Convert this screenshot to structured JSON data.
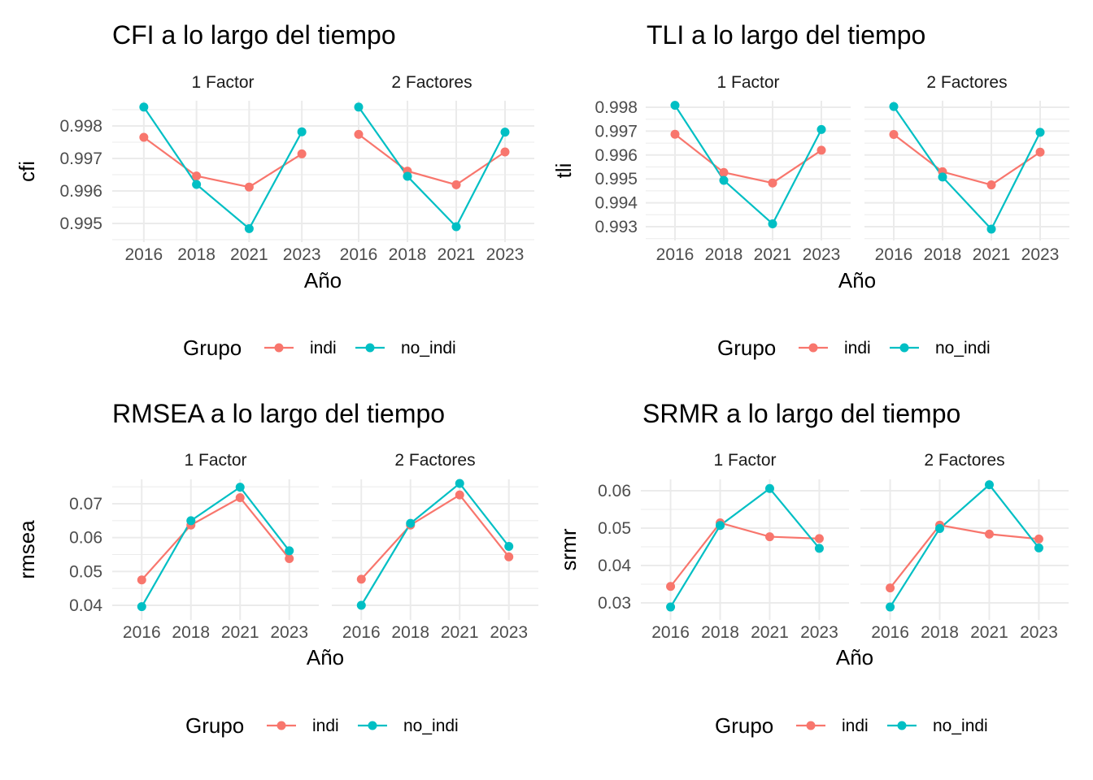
{
  "chart_data": [
    {
      "type": "line",
      "title": "CFI a lo largo del tiempo",
      "xlabel": "Año",
      "ylabel": "cfi",
      "categories": [
        "2016",
        "2018",
        "2021",
        "2023"
      ],
      "yticks": [
        "0.995",
        "0.996",
        "0.997",
        "0.998"
      ],
      "ylim": [
        0.99484,
        0.99858
      ],
      "facets": [
        {
          "label": "1 Factor",
          "series": [
            {
              "name": "indi",
              "values": [
                0.99765,
                0.99646,
                0.99612,
                0.99714
              ]
            },
            {
              "name": "no_indi",
              "values": [
                0.99858,
                0.9962,
                0.99484,
                0.99782
              ]
            }
          ]
        },
        {
          "label": "2 Factores",
          "series": [
            {
              "name": "indi",
              "values": [
                0.99774,
                0.99661,
                0.99619,
                0.9972
              ]
            },
            {
              "name": "no_indi",
              "values": [
                0.99858,
                0.99645,
                0.9949,
                0.99781
              ]
            }
          ]
        }
      ],
      "legend": {
        "title": "Grupo",
        "position": "bottom"
      }
    },
    {
      "type": "line",
      "title": "TLI a lo largo del tiempo",
      "xlabel": "Año",
      "ylabel": "tli",
      "categories": [
        "2016",
        "2018",
        "2021",
        "2023"
      ],
      "yticks": [
        "0.993",
        "0.994",
        "0.995",
        "0.996",
        "0.997",
        "0.998"
      ],
      "ylim": [
        0.9929,
        0.99808
      ],
      "facets": [
        {
          "label": "1 Factor",
          "series": [
            {
              "name": "indi",
              "values": [
                0.99687,
                0.99527,
                0.99483,
                0.9962
              ]
            },
            {
              "name": "no_indi",
              "values": [
                0.99808,
                0.99494,
                0.99312,
                0.99707
              ]
            }
          ]
        },
        {
          "label": "2 Factores",
          "series": [
            {
              "name": "indi",
              "values": [
                0.99686,
                0.9953,
                0.99475,
                0.99612
              ]
            },
            {
              "name": "no_indi",
              "values": [
                0.99803,
                0.99508,
                0.9929,
                0.99695
              ]
            }
          ]
        }
      ],
      "legend": {
        "title": "Grupo",
        "position": "bottom"
      }
    },
    {
      "type": "line",
      "title": "RMSEA a lo largo del tiempo",
      "xlabel": "Año",
      "ylabel": "rmsea",
      "categories": [
        "2016",
        "2018",
        "2021",
        "2023"
      ],
      "yticks": [
        "0.04",
        "0.05",
        "0.06",
        "0.07"
      ],
      "ylim": [
        0.0396,
        0.076
      ],
      "facets": [
        {
          "label": "1 Factor",
          "series": [
            {
              "name": "indi",
              "values": [
                0.0475,
                0.0637,
                0.0718,
                0.0538
              ]
            },
            {
              "name": "no_indi",
              "values": [
                0.0396,
                0.065,
                0.0749,
                0.0561
              ]
            }
          ]
        },
        {
          "label": "2 Factores",
          "series": [
            {
              "name": "indi",
              "values": [
                0.0477,
                0.0637,
                0.0726,
                0.0543
              ]
            },
            {
              "name": "no_indi",
              "values": [
                0.04,
                0.0642,
                0.076,
                0.0574
              ]
            }
          ]
        }
      ],
      "legend": {
        "title": "Grupo",
        "position": "bottom"
      }
    },
    {
      "type": "line",
      "title": "SRMR a lo largo del tiempo",
      "xlabel": "Año",
      "ylabel": "srmr",
      "categories": [
        "2016",
        "2018",
        "2021",
        "2023"
      ],
      "yticks": [
        "0.03",
        "0.04",
        "0.05",
        "0.06"
      ],
      "ylim": [
        0.0289,
        0.0616
      ],
      "facets": [
        {
          "label": "1 Factor",
          "series": [
            {
              "name": "indi",
              "values": [
                0.0344,
                0.0514,
                0.0477,
                0.0472
              ]
            },
            {
              "name": "no_indi",
              "values": [
                0.0289,
                0.0507,
                0.0606,
                0.0446
              ]
            }
          ]
        },
        {
          "label": "2 Factores",
          "series": [
            {
              "name": "indi",
              "values": [
                0.034,
                0.0508,
                0.0484,
                0.0471
              ]
            },
            {
              "name": "no_indi",
              "values": [
                0.0289,
                0.0499,
                0.0616,
                0.0447
              ]
            }
          ]
        }
      ],
      "legend": {
        "title": "Grupo",
        "position": "bottom"
      }
    }
  ],
  "colors": {
    "indi": "#F8766D",
    "no_indi": "#00BFC4"
  }
}
